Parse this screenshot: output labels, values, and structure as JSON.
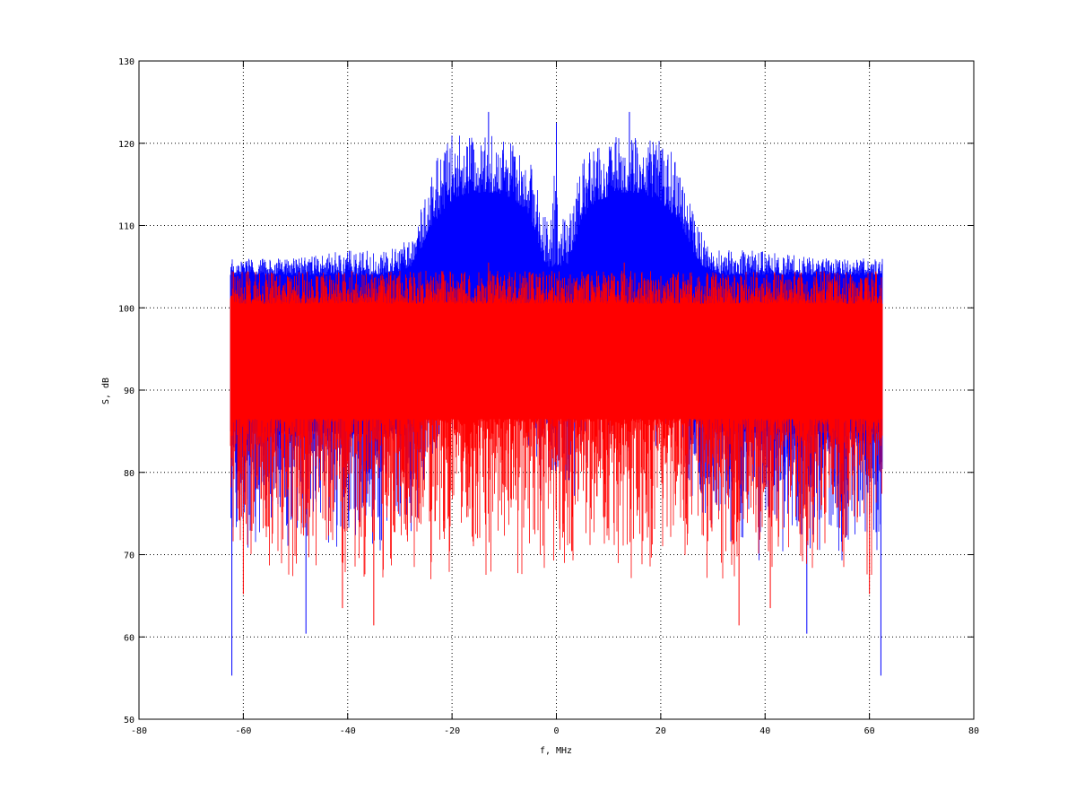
{
  "chart_data": {
    "type": "line",
    "title": "",
    "xlabel": "f, MHz",
    "ylabel": "S, dB",
    "xlim": [
      -80,
      80
    ],
    "ylim": [
      50,
      130
    ],
    "x_ticks": [
      -80,
      -60,
      -40,
      -20,
      0,
      20,
      40,
      60,
      80
    ],
    "y_ticks": [
      50,
      60,
      70,
      80,
      90,
      100,
      110,
      120,
      130
    ],
    "grid": "dotted",
    "legend": "none",
    "series": [
      {
        "color": "#0000ff",
        "style": "dense noisy spectrum",
        "x_range": [
          -62.5,
          62.5
        ],
        "envelope": {
          "x": [
            -62.5,
            -50,
            -40,
            -32,
            -28,
            -26,
            -24,
            -20,
            -16,
            -12,
            -8,
            -5,
            -3,
            -2,
            -1,
            0,
            1,
            2,
            3,
            5,
            8,
            12,
            16,
            20,
            24,
            26,
            28,
            32,
            40,
            50,
            62.5
          ],
          "upper": [
            106,
            106,
            107,
            107,
            109,
            112,
            117,
            121,
            121,
            121,
            120,
            118,
            113,
            111,
            111,
            122,
            111,
            111,
            113,
            118,
            120,
            121,
            121,
            121,
            117,
            112,
            109,
            107,
            107,
            106,
            106
          ],
          "mean_upper": [
            104,
            104,
            104,
            104,
            105,
            107,
            110,
            113,
            114,
            114,
            113,
            111,
            107,
            105,
            105,
            105,
            105,
            105,
            107,
            111,
            113,
            114,
            114,
            113,
            110,
            107,
            105,
            104,
            104,
            104,
            104
          ],
          "mean_lower": [
            85,
            85,
            85,
            85,
            86,
            88,
            92,
            95,
            96,
            96,
            95,
            93,
            90,
            89,
            89,
            89,
            89,
            89,
            90,
            93,
            95,
            96,
            96,
            95,
            92,
            88,
            86,
            85,
            85,
            85,
            85
          ],
          "lower": [
            72,
            73,
            73,
            74,
            75,
            77,
            82,
            85,
            86,
            86,
            85,
            83,
            80,
            79,
            79,
            79,
            79,
            79,
            80,
            83,
            85,
            86,
            86,
            85,
            82,
            77,
            75,
            74,
            73,
            73,
            72
          ]
        },
        "notable_points": [
          {
            "x": -62.2,
            "y": 55.3
          },
          {
            "x": 62.2,
            "y": 55.3
          },
          {
            "x": -48,
            "y": 60.4
          },
          {
            "x": 48,
            "y": 60.4
          },
          {
            "x": -13,
            "y": 123.8
          },
          {
            "x": 14,
            "y": 123.8
          },
          {
            "x": 0,
            "y": 122.5
          }
        ]
      },
      {
        "color": "#ff0000",
        "style": "dense noisy spectrum",
        "x_range": [
          -62.5,
          62.5
        ],
        "envelope": {
          "x": [
            -62.5,
            62.5
          ],
          "upper": [
            104.5,
            104.5
          ],
          "mean_upper": [
            100.5,
            100.5
          ],
          "mean_lower": [
            86.5,
            86.5
          ],
          "lower": [
            71,
            71
          ]
        },
        "notable_points": [
          {
            "x": -35,
            "y": 61.4
          },
          {
            "x": 35,
            "y": 61.4
          },
          {
            "x": -41,
            "y": 63.5
          },
          {
            "x": 41,
            "y": 63.5
          },
          {
            "x": -60,
            "y": 65.2
          },
          {
            "x": 60,
            "y": 65.2
          },
          {
            "x": -13,
            "y": 105.5
          },
          {
            "x": 13,
            "y": 105.5
          }
        ]
      }
    ]
  }
}
